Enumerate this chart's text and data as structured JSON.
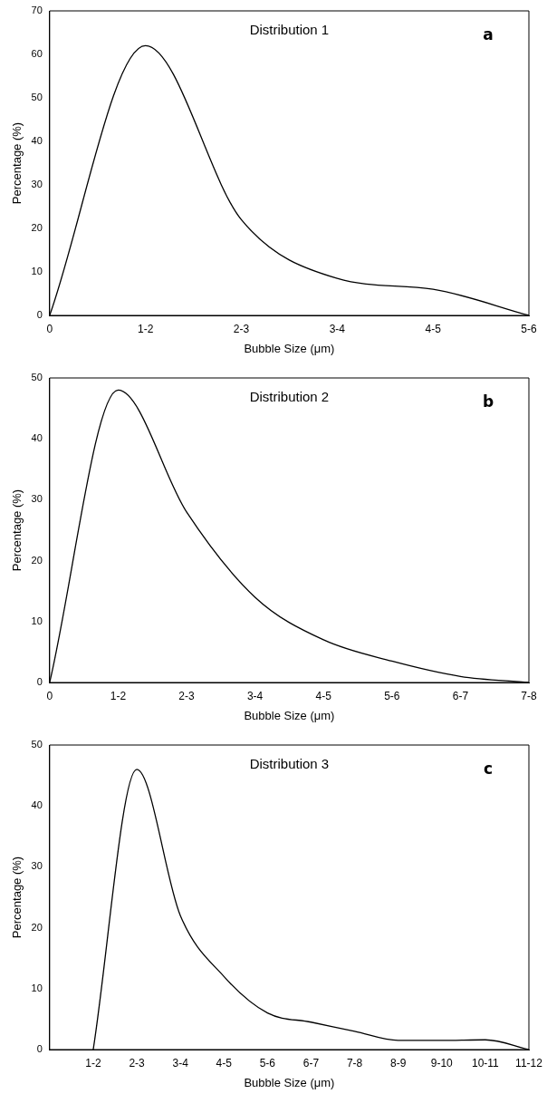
{
  "chart_data": [
    {
      "type": "line",
      "categories": [
        "0",
        "1-2",
        "2-3",
        "3-4",
        "4-5",
        "5-6"
      ],
      "series": [
        {
          "color": "#000000",
          "values": [
            0,
            62,
            22,
            8.5,
            6,
            0
          ]
        }
      ],
      "xlabel": "Bubble Size (μm)",
      "ylabel": "Percentage (%)",
      "ylim": [
        0,
        70
      ],
      "yticks": [
        0,
        10,
        20,
        30,
        40,
        50,
        60,
        70
      ],
      "annotations": [
        "Distribution 1",
        "a"
      ],
      "grid": false,
      "legend": false,
      "marker": "none",
      "line_style": "solid"
    },
    {
      "type": "line",
      "categories": [
        "0",
        "1-2",
        "2-3",
        "3-4",
        "4-5",
        "5-6",
        "6-7",
        "7-8"
      ],
      "series": [
        {
          "color": "#000000",
          "values": [
            0,
            48,
            28,
            14,
            7,
            3.5,
            1,
            0
          ]
        }
      ],
      "xlabel": "Bubble Size (μm)",
      "ylabel": "Percentage (%)",
      "ylim": [
        0,
        50
      ],
      "yticks": [
        0,
        10,
        20,
        30,
        40,
        50
      ],
      "annotations": [
        "Distribution 2",
        "b"
      ],
      "grid": false,
      "legend": false,
      "marker": "none",
      "line_style": "solid"
    },
    {
      "type": "line",
      "categories": [
        null,
        "1-2",
        "2-3",
        "3-4",
        "4-5",
        "5-6",
        "6-7",
        "7-8",
        "8-9",
        "9-10",
        "10-11",
        "11-12"
      ],
      "series": [
        {
          "color": "#000000",
          "values": [
            null,
            0,
            46,
            22,
            12,
            6,
            4.5,
            3,
            1.5,
            1.5,
            1.6,
            0
          ]
        }
      ],
      "xlabel": "Bubble Size (μm)",
      "ylabel": "Percentage (%)",
      "ylim": [
        0,
        50
      ],
      "yticks": [
        0,
        10,
        20,
        30,
        40,
        50
      ],
      "annotations": [
        "Distribution 3",
        "c"
      ],
      "grid": false,
      "legend": false,
      "marker": "none",
      "line_style": "solid"
    }
  ]
}
